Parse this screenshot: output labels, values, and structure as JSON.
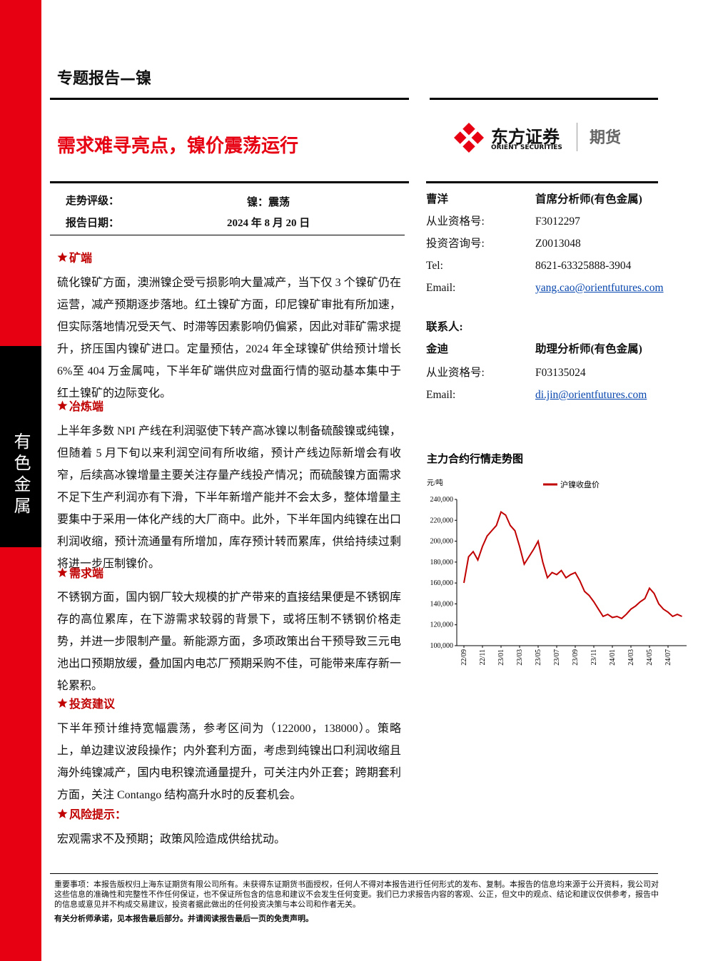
{
  "side_tab": "有色金属",
  "header": {
    "category": "专题报告—镍",
    "title": "需求难寻亮点，镍价震荡运行"
  },
  "logo": {
    "name": "东方证券",
    "english": "ORIENT SECURITIES",
    "tag": "期货"
  },
  "summary": {
    "rows": [
      [
        "走势评级：",
        "镍：震荡"
      ],
      [
        "报告日期：",
        "2024 年 8 月 20 日"
      ]
    ]
  },
  "sections": [
    {
      "heading": "矿端",
      "text": "硫化镍矿方面，澳洲镍企受亏损影响大量减产，当下仅 3 个镍矿仍在运营，减产预期逐步落地。红土镍矿方面，印尼镍矿审批有所加速，但实际落地情况受天气、时滞等因素影响仍偏紧，因此对菲矿需求提升，挤压国内镍矿进口。定量预估，2024 年全球镍矿供给预计增长 6%至 404 万金属吨，下半年矿端供应对盘面行情的驱动基本集中于红土镍矿的边际变化。"
    },
    {
      "heading": "冶炼端",
      "text": "上半年多数 NPI 产线在利润驱使下转产高冰镍以制备硫酸镍或纯镍，但随着 5 月下旬以来利润空间有所收缩，预计产线边际新增会有收窄，后续高冰镍增量主要关注存量产线投产情况；而硫酸镍方面需求不足下生产利润亦有下滑，下半年新增产能并不会太多，整体增量主要集中于采用一体化产线的大厂商中。此外，下半年国内纯镍在出口利润收缩，预计流通量有所增加，库存预计转而累库，供给持续过剩将进一步压制镍价。"
    },
    {
      "heading": "需求端",
      "text": "不锈钢方面，国内钢厂较大规模的扩产带来的直接结果便是不锈钢库存的高位累库，在下游需求较弱的背景下，或将压制不锈钢价格走势，并进一步限制产量。新能源方面，多项政策出台干预导致三元电池出口预期放缓，叠加国内电芯厂预期采购不佳，可能带来库存新一轮累积。"
    },
    {
      "heading": "投资建议",
      "text": "下半年预计维持宽幅震荡，参考区间为（122000，138000）。策略上，单边建议波段操作；内外套利方面，考虑到纯镍出口利润收缩且海外纯镍减产，国内电积镍流通量提升，可关注内外正套；跨期套利方面，关注 Contango 结构高升水时的反套机会。"
    },
    {
      "heading": "风险提示：",
      "text": "宏观需求不及预期；政策风险造成供给扰动。"
    }
  ],
  "analysts": [
    {
      "name": "曹洋",
      "role": "首席分析师(有色金属)",
      "fields": [
        [
          "从业资格号:",
          "F3012297"
        ],
        [
          "投资咨询号:",
          "Z0013048"
        ],
        [
          "Tel:",
          "8621-63325888-3904"
        ],
        [
          "Email:",
          "yang.cao@orientfutures.com"
        ]
      ]
    },
    {
      "contact_label": "联系人:",
      "name": "金迪",
      "role": "助理分析师(有色金属)",
      "fields": [
        [
          "从业资格号:",
          "F03135024"
        ],
        [
          "Email:",
          "di.jin@orientfutures.com"
        ]
      ]
    }
  ],
  "chart": {
    "type": "line",
    "title": "主力合约行情走势图",
    "y_unit": "元/吨",
    "categories": [
      "22/09",
      null,
      null,
      null,
      "22/11",
      null,
      null,
      null,
      "23/01",
      null,
      null,
      null,
      "23/03",
      null,
      null,
      null,
      "23/05",
      null,
      null,
      null,
      "23/07",
      null,
      null,
      null,
      "23/09",
      null,
      null,
      null,
      "23/11",
      null,
      null,
      null,
      "24/01",
      null,
      null,
      null,
      "24/03",
      null,
      null,
      null,
      "24/05",
      null,
      null,
      null,
      "24/07",
      null,
      null,
      null
    ],
    "series": [
      {
        "name": "沪镍收盘价",
        "color": "#c00000",
        "values": [
          160000,
          185000,
          190000,
          182000,
          195000,
          205000,
          210000,
          215000,
          228000,
          225000,
          215000,
          210000,
          195000,
          178000,
          185000,
          192000,
          200000,
          180000,
          165000,
          170000,
          168000,
          172000,
          165000,
          168000,
          170000,
          162000,
          152000,
          148000,
          142000,
          135000,
          128000,
          130000,
          127000,
          128000,
          126000,
          130000,
          135000,
          138000,
          142000,
          145000,
          155000,
          150000,
          140000,
          135000,
          132000,
          128000,
          130000,
          128000
        ]
      }
    ],
    "ylim": [
      100000,
      240000
    ],
    "yticks": [
      {
        "value": 100000,
        "label": "100,000"
      },
      {
        "value": 120000,
        "label": "120,000"
      },
      {
        "value": 140000,
        "label": "140,000"
      },
      {
        "value": 160000,
        "label": "160,000"
      },
      {
        "value": 180000,
        "label": "180,000"
      },
      {
        "value": 200000,
        "label": "200,000"
      },
      {
        "value": 220000,
        "label": "220,000"
      },
      {
        "value": 240000,
        "label": "240,000"
      }
    ]
  },
  "footer": {
    "disclaimer": "重要事项：本报告版权归上海东证期货有限公司所有。未获得东证期货书面授权，任何人不得对本报告进行任何形式的发布、复制。本报告的信息均来源于公开资料，我公司对这些信息的准确性和完整性不作任何保证，也不保证所包含的信息和建议不会发生任何变更。我们已力求报告内容的客观、公正，但文中的观点、结论和建议仅供参考，报告中的信息或意见并不构成交易建议，投资者据此做出的任何投资决策与本公司和作者无关。",
    "note": "有关分析师承诺，见本报告最后部分。并请阅读报告最后一页的免责声明。"
  }
}
